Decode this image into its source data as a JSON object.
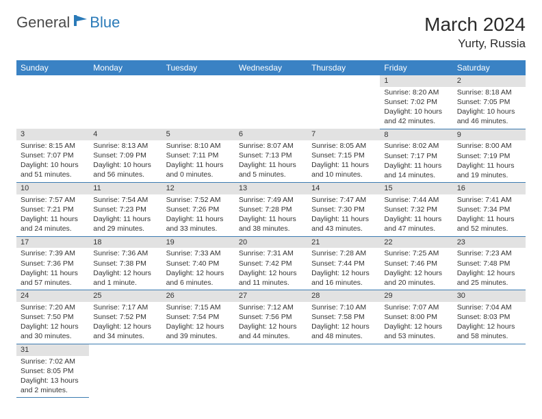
{
  "logo": {
    "general": "General",
    "blue": "Blue"
  },
  "title": {
    "monthYear": "March 2024",
    "location": "Yurty, Russia"
  },
  "colors": {
    "headerBg": "#3a82c4",
    "headerText": "#ffffff",
    "dayBar": "#e2e2e2",
    "rowBorder": "#3a7ab0",
    "logoBlue": "#2a7ab8",
    "textDark": "#333333"
  },
  "dayNames": [
    "Sunday",
    "Monday",
    "Tuesday",
    "Wednesday",
    "Thursday",
    "Friday",
    "Saturday"
  ],
  "weeks": [
    [
      null,
      null,
      null,
      null,
      null,
      {
        "n": "1",
        "sr": "8:20 AM",
        "ss": "7:02 PM",
        "dl": "10 hours and 42 minutes."
      },
      {
        "n": "2",
        "sr": "8:18 AM",
        "ss": "7:05 PM",
        "dl": "10 hours and 46 minutes."
      }
    ],
    [
      {
        "n": "3",
        "sr": "8:15 AM",
        "ss": "7:07 PM",
        "dl": "10 hours and 51 minutes."
      },
      {
        "n": "4",
        "sr": "8:13 AM",
        "ss": "7:09 PM",
        "dl": "10 hours and 56 minutes."
      },
      {
        "n": "5",
        "sr": "8:10 AM",
        "ss": "7:11 PM",
        "dl": "11 hours and 0 minutes."
      },
      {
        "n": "6",
        "sr": "8:07 AM",
        "ss": "7:13 PM",
        "dl": "11 hours and 5 minutes."
      },
      {
        "n": "7",
        "sr": "8:05 AM",
        "ss": "7:15 PM",
        "dl": "11 hours and 10 minutes."
      },
      {
        "n": "8",
        "sr": "8:02 AM",
        "ss": "7:17 PM",
        "dl": "11 hours and 14 minutes."
      },
      {
        "n": "9",
        "sr": "8:00 AM",
        "ss": "7:19 PM",
        "dl": "11 hours and 19 minutes."
      }
    ],
    [
      {
        "n": "10",
        "sr": "7:57 AM",
        "ss": "7:21 PM",
        "dl": "11 hours and 24 minutes."
      },
      {
        "n": "11",
        "sr": "7:54 AM",
        "ss": "7:23 PM",
        "dl": "11 hours and 29 minutes."
      },
      {
        "n": "12",
        "sr": "7:52 AM",
        "ss": "7:26 PM",
        "dl": "11 hours and 33 minutes."
      },
      {
        "n": "13",
        "sr": "7:49 AM",
        "ss": "7:28 PM",
        "dl": "11 hours and 38 minutes."
      },
      {
        "n": "14",
        "sr": "7:47 AM",
        "ss": "7:30 PM",
        "dl": "11 hours and 43 minutes."
      },
      {
        "n": "15",
        "sr": "7:44 AM",
        "ss": "7:32 PM",
        "dl": "11 hours and 47 minutes."
      },
      {
        "n": "16",
        "sr": "7:41 AM",
        "ss": "7:34 PM",
        "dl": "11 hours and 52 minutes."
      }
    ],
    [
      {
        "n": "17",
        "sr": "7:39 AM",
        "ss": "7:36 PM",
        "dl": "11 hours and 57 minutes."
      },
      {
        "n": "18",
        "sr": "7:36 AM",
        "ss": "7:38 PM",
        "dl": "12 hours and 1 minute."
      },
      {
        "n": "19",
        "sr": "7:33 AM",
        "ss": "7:40 PM",
        "dl": "12 hours and 6 minutes."
      },
      {
        "n": "20",
        "sr": "7:31 AM",
        "ss": "7:42 PM",
        "dl": "12 hours and 11 minutes."
      },
      {
        "n": "21",
        "sr": "7:28 AM",
        "ss": "7:44 PM",
        "dl": "12 hours and 16 minutes."
      },
      {
        "n": "22",
        "sr": "7:25 AM",
        "ss": "7:46 PM",
        "dl": "12 hours and 20 minutes."
      },
      {
        "n": "23",
        "sr": "7:23 AM",
        "ss": "7:48 PM",
        "dl": "12 hours and 25 minutes."
      }
    ],
    [
      {
        "n": "24",
        "sr": "7:20 AM",
        "ss": "7:50 PM",
        "dl": "12 hours and 30 minutes."
      },
      {
        "n": "25",
        "sr": "7:17 AM",
        "ss": "7:52 PM",
        "dl": "12 hours and 34 minutes."
      },
      {
        "n": "26",
        "sr": "7:15 AM",
        "ss": "7:54 PM",
        "dl": "12 hours and 39 minutes."
      },
      {
        "n": "27",
        "sr": "7:12 AM",
        "ss": "7:56 PM",
        "dl": "12 hours and 44 minutes."
      },
      {
        "n": "28",
        "sr": "7:10 AM",
        "ss": "7:58 PM",
        "dl": "12 hours and 48 minutes."
      },
      {
        "n": "29",
        "sr": "7:07 AM",
        "ss": "8:00 PM",
        "dl": "12 hours and 53 minutes."
      },
      {
        "n": "30",
        "sr": "7:04 AM",
        "ss": "8:03 PM",
        "dl": "12 hours and 58 minutes."
      }
    ],
    [
      {
        "n": "31",
        "sr": "7:02 AM",
        "ss": "8:05 PM",
        "dl": "13 hours and 2 minutes."
      },
      null,
      null,
      null,
      null,
      null,
      null
    ]
  ],
  "labels": {
    "sunrise": "Sunrise:",
    "sunset": "Sunset:",
    "daylight": "Daylight:"
  }
}
